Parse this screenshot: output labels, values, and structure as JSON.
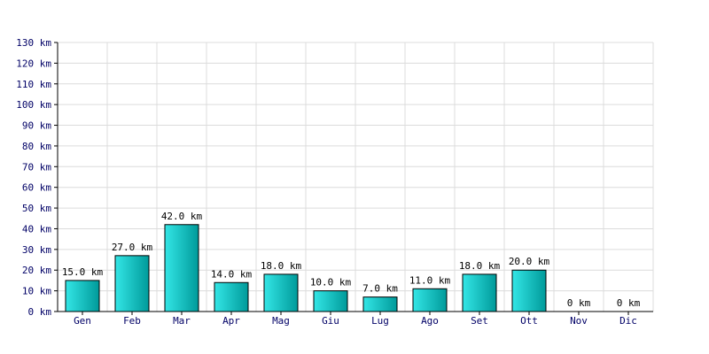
{
  "chart_data": {
    "type": "bar",
    "categories": [
      "Gen",
      "Feb",
      "Mar",
      "Apr",
      "Mag",
      "Giu",
      "Lug",
      "Ago",
      "Set",
      "Ott",
      "Nov",
      "Dic"
    ],
    "values": [
      15.0,
      27.0,
      42.0,
      14.0,
      18.0,
      10.0,
      7.0,
      11.0,
      18.0,
      20.0,
      0,
      0
    ],
    "data_labels": [
      "15.0 km",
      "27.0 km",
      "42.0 km",
      "14.0 km",
      "18.0 km",
      "10.0 km",
      "7.0 km",
      "11.0 km",
      "18.0 km",
      "20.0 km",
      "0 km",
      "0 km"
    ],
    "y_ticks": [
      0,
      10,
      20,
      30,
      40,
      50,
      60,
      70,
      80,
      90,
      100,
      110,
      120,
      130
    ],
    "y_tick_labels": [
      "0 km",
      "10 km",
      "20 km",
      "30 km",
      "40 km",
      "50 km",
      "60 km",
      "70 km",
      "80 km",
      "90 km",
      "100 km",
      "110 km",
      "120 km",
      "130 km"
    ],
    "ylim": [
      0,
      130
    ],
    "grid": true,
    "title": "",
    "xlabel": "",
    "ylabel": "",
    "colors": {
      "bar_light": "#33e6e6",
      "bar_dark": "#009a9a",
      "bar_outline": "#000000",
      "grid": "#dcdcdc",
      "axis": "#000000",
      "tick_text": "#000066"
    }
  }
}
